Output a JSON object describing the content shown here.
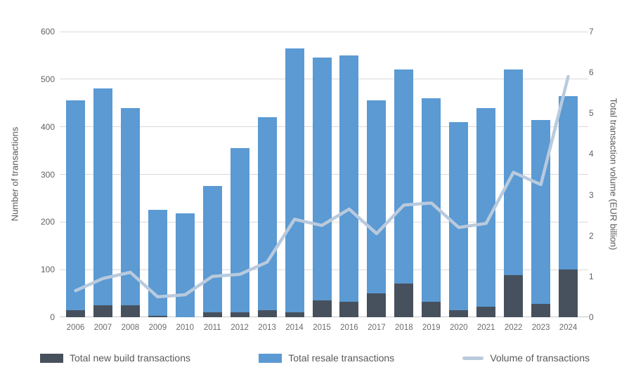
{
  "chart_data": {
    "type": "bar",
    "subtype": "stacked-bars-with-line-overlay",
    "title": "",
    "categories": [
      "2006",
      "2007",
      "2008",
      "2009",
      "2010",
      "2011",
      "2012",
      "2013",
      "2014",
      "2015",
      "2016",
      "2017",
      "2018",
      "2019",
      "2020",
      "2021",
      "2022",
      "2023",
      "2024"
    ],
    "series": [
      {
        "name": "Total new build transactions",
        "type": "bar",
        "stack": "transactions",
        "axis": "left",
        "color": "#47515d",
        "values": [
          15,
          25,
          25,
          3,
          0,
          10,
          10,
          15,
          10,
          36,
          32,
          50,
          71,
          33,
          15,
          22,
          88,
          28,
          100
        ]
      },
      {
        "name": "Total resale transactions",
        "type": "bar",
        "stack": "transactions",
        "axis": "left",
        "color": "#5b9ad3",
        "values": [
          440,
          455,
          415,
          222,
          218,
          265,
          345,
          405,
          555,
          509,
          518,
          405,
          449,
          427,
          395,
          418,
          432,
          387,
          365
        ]
      },
      {
        "name": "Volume of transactions",
        "type": "line",
        "axis": "right",
        "color": "#b9cadd",
        "values": [
          0.65,
          0.95,
          1.1,
          0.5,
          0.55,
          1.0,
          1.05,
          1.35,
          2.4,
          2.25,
          2.65,
          2.05,
          2.75,
          2.8,
          2.2,
          2.3,
          3.55,
          3.25,
          5.9
        ]
      }
    ],
    "left_axis": {
      "label": "Number of transactions",
      "min": 0,
      "max": 600,
      "tick_step": 100,
      "ticks": [
        "0",
        "100",
        "200",
        "300",
        "400",
        "500",
        "600"
      ]
    },
    "right_axis": {
      "label": "Total transaction volume (EUR billion)",
      "min": 0,
      "max": 7,
      "tick_step": 1,
      "ticks": [
        "0",
        "1",
        "2",
        "3",
        "4",
        "5",
        "6",
        "7"
      ]
    },
    "grid": "horizontal",
    "legend_position": "bottom",
    "colors": {
      "gridline": "#d9d9d9",
      "axis_line": "#c6c6c6",
      "tick_text": "#616161",
      "legend_text": "#595959",
      "background": "#ffffff"
    }
  }
}
